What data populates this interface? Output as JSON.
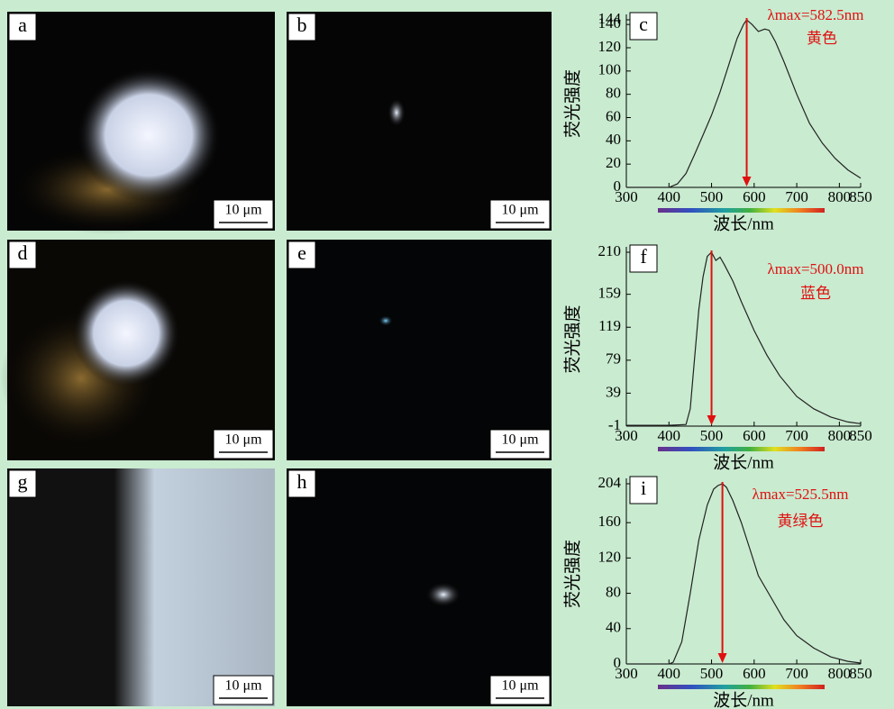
{
  "panels": [
    {
      "label": "a",
      "scale": "10 μm"
    },
    {
      "label": "b",
      "scale": "10 μm"
    },
    {
      "label": "d",
      "scale": "10 μm"
    },
    {
      "label": "e",
      "scale": "10 μm"
    },
    {
      "label": "g",
      "scale": "10 μm"
    },
    {
      "label": "h",
      "scale": "10 μm"
    }
  ],
  "chart_data": [
    {
      "type": "line",
      "panel_label": "c",
      "annotation": {
        "text": "λmax=582.5nm",
        "x": 582.5
      },
      "color_name": "黄色",
      "ylabel": "荧光强度",
      "xlabel": "波长/nm",
      "color": "#222222",
      "xlim": [
        300,
        850
      ],
      "xticks": [
        300,
        400,
        500,
        600,
        700,
        800,
        850
      ],
      "ylim": [
        0,
        144
      ],
      "yticks": [
        0,
        20,
        40,
        60,
        80,
        100,
        120,
        140,
        144
      ],
      "x": [
        300,
        350,
        400,
        420,
        440,
        460,
        480,
        500,
        520,
        540,
        560,
        575,
        582.5,
        595,
        610,
        625,
        635,
        650,
        670,
        700,
        730,
        760,
        790,
        820,
        850
      ],
      "values": [
        0,
        0,
        0,
        3,
        12,
        28,
        45,
        62,
        82,
        105,
        128,
        140,
        144,
        140,
        134,
        136,
        135,
        125,
        108,
        80,
        55,
        38,
        25,
        15,
        8
      ]
    },
    {
      "type": "line",
      "panel_label": "f",
      "annotation": {
        "text": "λmax=500.0nm",
        "x": 500.0
      },
      "color_name": "蓝色",
      "ylabel": "荧光强度",
      "xlabel": "波长/nm",
      "color": "#222222",
      "xlim": [
        300,
        850
      ],
      "xticks": [
        300,
        400,
        500,
        600,
        700,
        800,
        850
      ],
      "ylim": [
        -1,
        210
      ],
      "yticks": [
        -1,
        39,
        79,
        119,
        159,
        210
      ],
      "x": [
        300,
        350,
        400,
        440,
        450,
        460,
        470,
        480,
        490,
        500,
        510,
        520,
        530,
        550,
        570,
        600,
        630,
        660,
        700,
        740,
        780,
        820,
        850
      ],
      "values": [
        0,
        0,
        0,
        1,
        20,
        80,
        140,
        180,
        205,
        210,
        200,
        204,
        195,
        175,
        150,
        115,
        85,
        60,
        35,
        20,
        10,
        4,
        2
      ]
    },
    {
      "type": "line",
      "panel_label": "i",
      "annotation": {
        "text": "λmax=525.5nm",
        "x": 525.5
      },
      "color_name": "黄绿色",
      "ylabel": "荧光强度",
      "xlabel": "波长/nm",
      "color": "#222222",
      "xlim": [
        300,
        850
      ],
      "xticks": [
        300,
        400,
        500,
        600,
        700,
        800,
        850
      ],
      "ylim": [
        0,
        204
      ],
      "yticks": [
        0,
        40,
        80,
        120,
        160,
        204
      ],
      "x": [
        300,
        350,
        400,
        410,
        430,
        450,
        470,
        490,
        505,
        515,
        525.5,
        535,
        550,
        570,
        590,
        610,
        640,
        670,
        700,
        740,
        780,
        820,
        850
      ],
      "values": [
        0,
        0,
        0,
        2,
        25,
        80,
        140,
        180,
        198,
        202,
        204,
        200,
        185,
        160,
        130,
        100,
        75,
        50,
        32,
        18,
        8,
        3,
        1
      ]
    }
  ]
}
